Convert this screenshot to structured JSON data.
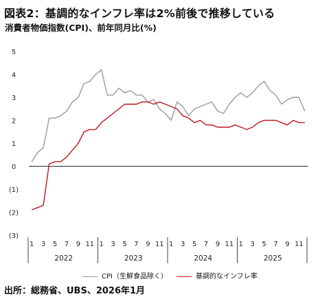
{
  "title": "図表2：基調的なインフレ率は2%前後で推移している",
  "subtitle": "消費者物価指数(CPI)、前年同月比(%)",
  "source": "出所：総務省、UBS、2026年1月",
  "colors": {
    "cpi": "#9a9a9a",
    "core": "#c0141c",
    "axis": "#222222"
  },
  "chart_data": {
    "type": "line",
    "title": "",
    "xlabel": "",
    "ylabel": "",
    "ylim": [
      -3,
      5
    ],
    "y_ticks": [
      5,
      4,
      3,
      2,
      1,
      0,
      -1,
      -2,
      -3
    ],
    "y_tick_labels": [
      "5",
      "4",
      "3",
      "2",
      "1",
      "0",
      "(1)",
      "(2)",
      "(3)"
    ],
    "month_tick_labels": [
      "1",
      "3",
      "5",
      "7",
      "9",
      "11"
    ],
    "years": [
      "2022",
      "2023",
      "2024",
      "2025"
    ],
    "grid": false,
    "legend_position": "bottom",
    "x": [
      "2022-01",
      "2022-02",
      "2022-03",
      "2022-04",
      "2022-05",
      "2022-06",
      "2022-07",
      "2022-08",
      "2022-09",
      "2022-10",
      "2022-11",
      "2022-12",
      "2023-01",
      "2023-02",
      "2023-03",
      "2023-04",
      "2023-05",
      "2023-06",
      "2023-07",
      "2023-08",
      "2023-09",
      "2023-10",
      "2023-11",
      "2023-12",
      "2024-01",
      "2024-02",
      "2024-03",
      "2024-04",
      "2024-05",
      "2024-06",
      "2024-07",
      "2024-08",
      "2024-09",
      "2024-10",
      "2024-11",
      "2024-12",
      "2025-01",
      "2025-02",
      "2025-03",
      "2025-04",
      "2025-05",
      "2025-06",
      "2025-07",
      "2025-08",
      "2025-09",
      "2025-10",
      "2025-11",
      "2025-12"
    ],
    "series": [
      {
        "name": "CPI（生鮮食品除く）",
        "color_key": "cpi",
        "values": [
          0.2,
          0.6,
          0.8,
          2.1,
          2.1,
          2.2,
          2.4,
          2.8,
          3.0,
          3.6,
          3.7,
          4.0,
          4.2,
          3.1,
          3.1,
          3.4,
          3.2,
          3.3,
          3.1,
          3.1,
          2.8,
          2.9,
          2.5,
          2.3,
          2.0,
          2.8,
          2.6,
          2.2,
          2.5,
          2.6,
          2.7,
          2.8,
          2.4,
          2.3,
          2.7,
          3.0,
          3.2,
          3.0,
          3.2,
          3.5,
          3.7,
          3.3,
          3.1,
          2.7,
          2.9,
          3.0,
          3.0,
          2.4
        ]
      },
      {
        "name": "基調的なインフレ率",
        "color_key": "core",
        "values": [
          -1.9,
          -1.8,
          -1.7,
          0.1,
          0.2,
          0.2,
          0.4,
          0.7,
          1.0,
          1.5,
          1.6,
          1.6,
          1.9,
          2.1,
          2.3,
          2.5,
          2.7,
          2.7,
          2.7,
          2.8,
          2.8,
          2.7,
          2.8,
          2.7,
          2.6,
          2.5,
          2.2,
          2.1,
          1.9,
          2.0,
          1.8,
          1.8,
          1.7,
          1.7,
          1.7,
          1.8,
          1.7,
          1.6,
          1.7,
          1.9,
          2.0,
          2.0,
          2.0,
          1.9,
          1.8,
          2.0,
          1.9,
          1.9
        ]
      }
    ]
  }
}
